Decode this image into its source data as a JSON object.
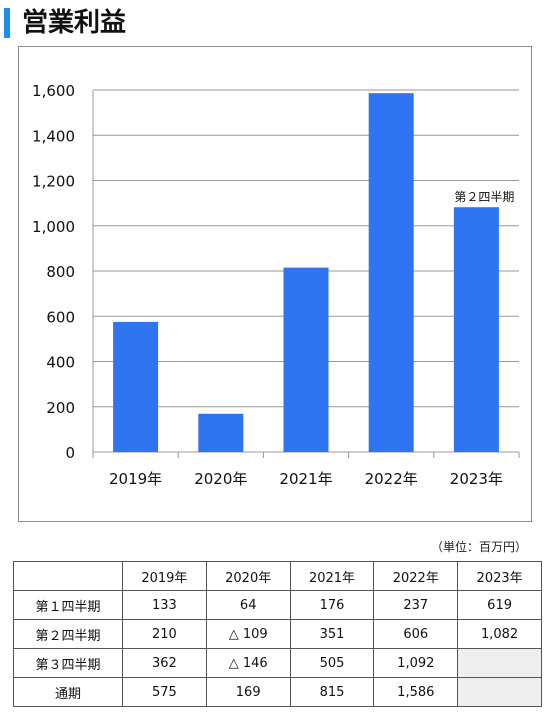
{
  "page": {
    "title": "営業利益",
    "unit_note": "（単位：百万円）"
  },
  "colors": {
    "accent": "#1e8fe6",
    "bar": "#2f74f0",
    "grid": "#999999"
  },
  "chart_data": {
    "type": "bar",
    "title": "",
    "xlabel": "",
    "ylabel": "",
    "categories": [
      "2019年",
      "2020年",
      "2021年",
      "2022年",
      "2023年"
    ],
    "values": [
      575,
      169,
      815,
      1586,
      1082
    ],
    "ylim": [
      0,
      1600
    ],
    "yticks": [
      0,
      200,
      400,
      600,
      800,
      1000,
      1200,
      1400,
      1600
    ],
    "ytick_labels": [
      "0",
      "200",
      "400",
      "600",
      "800",
      "1,000",
      "1,200",
      "1,400",
      "1,600"
    ],
    "grid": true,
    "annotations": [
      {
        "category": "2023年",
        "text": "第２四半期"
      }
    ]
  },
  "table": {
    "columns": [
      "",
      "2019年",
      "2020年",
      "2021年",
      "2022年",
      "2023年"
    ],
    "rows": [
      {
        "label": "第１四半期",
        "values": [
          "133",
          "64",
          "176",
          "237",
          "619"
        ]
      },
      {
        "label": "第２四半期",
        "values": [
          "210",
          "△ 109",
          "351",
          "606",
          "1,082"
        ]
      },
      {
        "label": "第３四半期",
        "values": [
          "362",
          "△ 146",
          "505",
          "1,092",
          ""
        ]
      },
      {
        "label": "通期",
        "values": [
          "575",
          "169",
          "815",
          "1,586",
          ""
        ]
      }
    ]
  }
}
